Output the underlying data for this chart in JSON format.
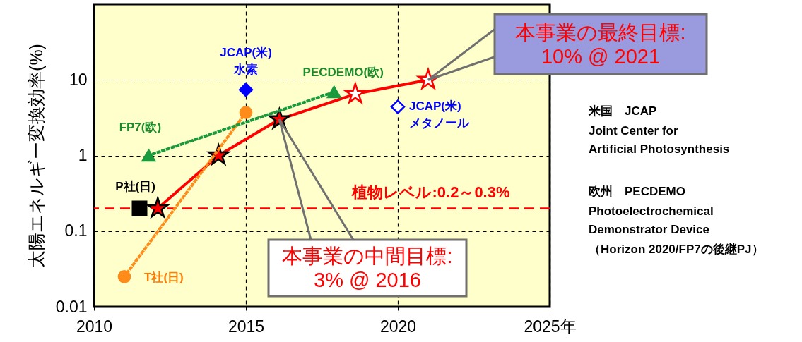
{
  "chart_data": {
    "type": "line",
    "xlabel": null,
    "ylabel": "太陽エネルギー変換効率(%)",
    "xlim": [
      2010,
      2025
    ],
    "xticks": [
      2010,
      2015,
      2020,
      {
        "value": 2025,
        "label": "2025年"
      }
    ],
    "ylim": [
      0.01,
      100
    ],
    "yticks": [
      0.01,
      0.1,
      1,
      10
    ],
    "log": true,
    "grid": true,
    "series": [
      {
        "color": "#ff0000",
        "marker": "star",
        "x": [
          2012.1,
          2014.1,
          2016.1,
          2018.6,
          2021
        ],
        "values": [
          0.2,
          1,
          3,
          6.5,
          10
        ]
      },
      {
        "type": "line",
        "color": "#ff8c1a",
        "marker": "circle",
        "line_style": "dotted",
        "x": [
          2011,
          2015
        ],
        "values": [
          0.025,
          3.7
        ]
      },
      {
        "type": "line",
        "color": "#1a9a3c",
        "marker": "triangle",
        "line_style": "dotted",
        "x": [
          2011.8,
          2017.9
        ],
        "values": [
          1,
          6.9
        ]
      },
      {
        "type": "scatter",
        "color": "#0000ff",
        "marker": "diamond",
        "x": [
          2015
        ],
        "values": [
          7.4
        ]
      },
      {
        "type": "scatter",
        "color": "#0000ff",
        "marker": "diamond",
        "x": [
          2020
        ],
        "values": [
          4.4
        ]
      },
      {
        "type": "scatter",
        "color": "#000000",
        "marker": "square",
        "x": [
          2011.5
        ],
        "values": [
          0.2
        ]
      }
    ],
    "ref_lines": [
      {
        "axis": "y",
        "value": 0.2,
        "label": "植物レベル:0.2～0.3%",
        "color": "#ff0000",
        "line_style": "dashed"
      }
    ],
    "annotations": [
      {
        "text": "JCAP(米)\n水素",
        "x": 2015,
        "y": 7.4
      },
      {
        "text": "PECDEMO(欧)",
        "x": 2017.9,
        "y": 6.9
      },
      {
        "text": "JCAP(米)\nメタノール",
        "x": 2020,
        "y": 4.4
      },
      {
        "text": "FP7(欧)",
        "x": 2011.8,
        "y": 1
      },
      {
        "text": "P社(日)",
        "x": 2011.5,
        "y": 0.2
      },
      {
        "text": "T社(日)",
        "x": 2011,
        "y": 0.025
      },
      {
        "text": "本事業の最終目標:\n10% @ 2021",
        "x": 2021,
        "y": 10
      },
      {
        "text": "本事業の中間目標:\n3% @ 2016",
        "x": 2016.1,
        "y": 3
      },
      "米国　JCAP",
      "Joint Center for",
      "Artificial Photosynthesis",
      "欧州　PECDEMO",
      "Photoelectrochemical",
      "Demonstrator Device",
      "（Horizon 2020/FP7の後継PJ）"
    ]
  }
}
